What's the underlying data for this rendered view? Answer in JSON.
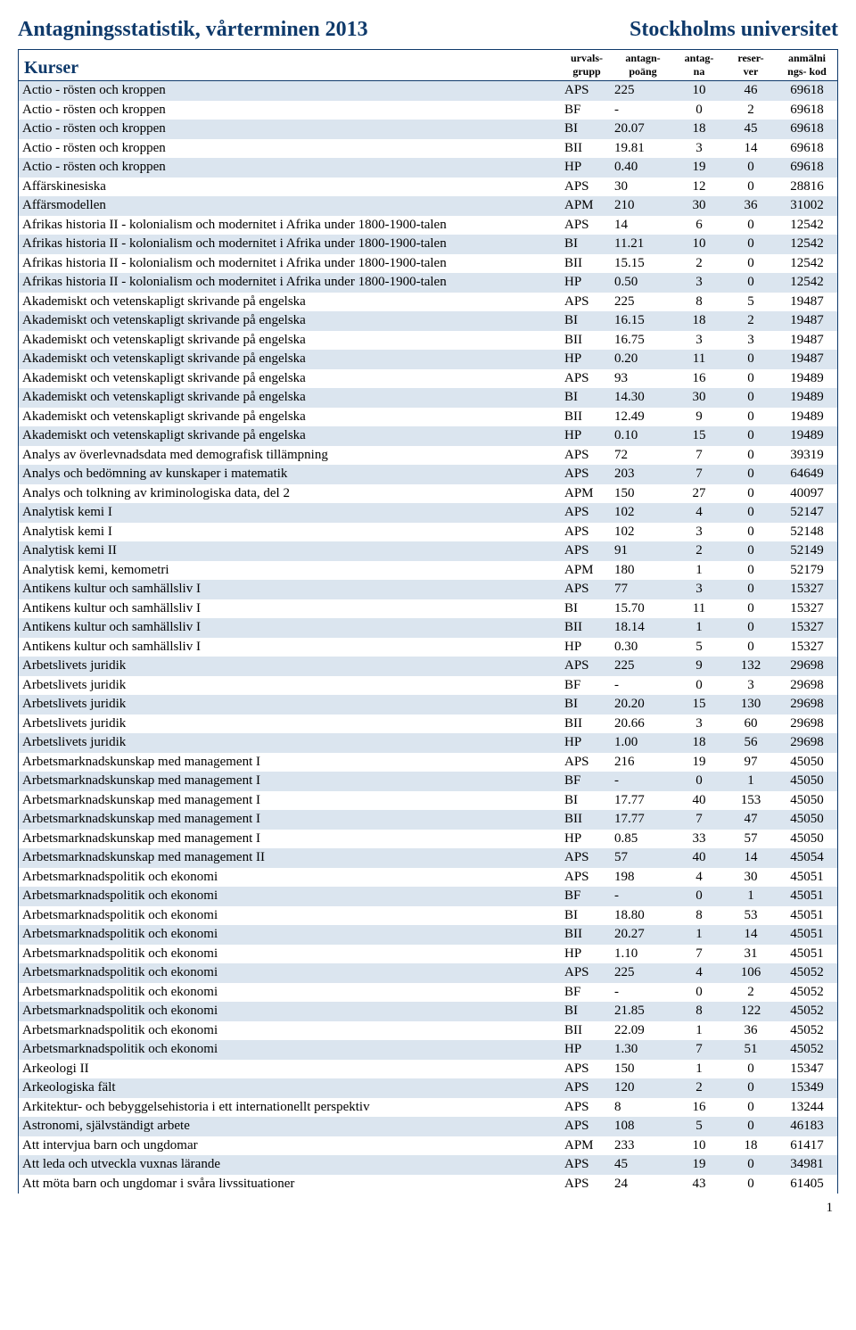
{
  "header": {
    "left": "Antagningsstatistik, vårterminen 2013",
    "right": "Stockholms universitet"
  },
  "columns": {
    "kurser": "Kurser",
    "grupp": "urvals-\ngrupp",
    "poang": "antagn-\npoäng",
    "antag": "antag-\nna",
    "reser": "reser-\nver",
    "kod": "anmälni\nngs- kod"
  },
  "page_number": "1",
  "rows": [
    {
      "name": "Actio - rösten och kroppen",
      "grupp": "APS",
      "poang": "225",
      "antag": "10",
      "reser": "46",
      "kod": "69618",
      "shade": true
    },
    {
      "name": "Actio - rösten och kroppen",
      "grupp": "BF",
      "poang": "-",
      "antag": "0",
      "reser": "2",
      "kod": "69618",
      "shade": false
    },
    {
      "name": "Actio - rösten och kroppen",
      "grupp": "BI",
      "poang": "20.07",
      "antag": "18",
      "reser": "45",
      "kod": "69618",
      "shade": true
    },
    {
      "name": "Actio - rösten och kroppen",
      "grupp": "BII",
      "poang": "19.81",
      "antag": "3",
      "reser": "14",
      "kod": "69618",
      "shade": false
    },
    {
      "name": "Actio - rösten och kroppen",
      "grupp": "HP",
      "poang": "0.40",
      "antag": "19",
      "reser": "0",
      "kod": "69618",
      "shade": true
    },
    {
      "name": "Affärskinesiska",
      "grupp": "APS",
      "poang": "30",
      "antag": "12",
      "reser": "0",
      "kod": "28816",
      "shade": false
    },
    {
      "name": "Affärsmodellen",
      "grupp": "APM",
      "poang": "210",
      "antag": "30",
      "reser": "36",
      "kod": "31002",
      "shade": true
    },
    {
      "name": "Afrikas historia II -  kolonialism och modernitet i Afrika under 1800-1900-talen",
      "grupp": "APS",
      "poang": "14",
      "antag": "6",
      "reser": "0",
      "kod": "12542",
      "shade": false
    },
    {
      "name": "Afrikas historia II -  kolonialism och modernitet i Afrika under 1800-1900-talen",
      "grupp": "BI",
      "poang": "11.21",
      "antag": "10",
      "reser": "0",
      "kod": "12542",
      "shade": true
    },
    {
      "name": "Afrikas historia II -  kolonialism och modernitet i Afrika under 1800-1900-talen",
      "grupp": "BII",
      "poang": "15.15",
      "antag": "2",
      "reser": "0",
      "kod": "12542",
      "shade": false
    },
    {
      "name": "Afrikas historia II -  kolonialism och modernitet i Afrika under 1800-1900-talen",
      "grupp": "HP",
      "poang": "0.50",
      "antag": "3",
      "reser": "0",
      "kod": "12542",
      "shade": true
    },
    {
      "name": "Akademiskt och vetenskapligt skrivande på engelska",
      "grupp": "APS",
      "poang": "225",
      "antag": "8",
      "reser": "5",
      "kod": "19487",
      "shade": false
    },
    {
      "name": "Akademiskt och vetenskapligt skrivande på engelska",
      "grupp": "BI",
      "poang": "16.15",
      "antag": "18",
      "reser": "2",
      "kod": "19487",
      "shade": true
    },
    {
      "name": "Akademiskt och vetenskapligt skrivande på engelska",
      "grupp": "BII",
      "poang": "16.75",
      "antag": "3",
      "reser": "3",
      "kod": "19487",
      "shade": false
    },
    {
      "name": "Akademiskt och vetenskapligt skrivande på engelska",
      "grupp": "HP",
      "poang": "0.20",
      "antag": "11",
      "reser": "0",
      "kod": "19487",
      "shade": true
    },
    {
      "name": "Akademiskt och vetenskapligt skrivande på engelska",
      "grupp": "APS",
      "poang": "93",
      "antag": "16",
      "reser": "0",
      "kod": "19489",
      "shade": false
    },
    {
      "name": "Akademiskt och vetenskapligt skrivande på engelska",
      "grupp": "BI",
      "poang": "14.30",
      "antag": "30",
      "reser": "0",
      "kod": "19489",
      "shade": true
    },
    {
      "name": "Akademiskt och vetenskapligt skrivande på engelska",
      "grupp": "BII",
      "poang": "12.49",
      "antag": "9",
      "reser": "0",
      "kod": "19489",
      "shade": false
    },
    {
      "name": "Akademiskt och vetenskapligt skrivande på engelska",
      "grupp": "HP",
      "poang": "0.10",
      "antag": "15",
      "reser": "0",
      "kod": "19489",
      "shade": true
    },
    {
      "name": "Analys av överlevnadsdata med demografisk tillämpning",
      "grupp": "APS",
      "poang": "72",
      "antag": "7",
      "reser": "0",
      "kod": "39319",
      "shade": false
    },
    {
      "name": "Analys och bedömning av kunskaper i matematik",
      "grupp": "APS",
      "poang": "203",
      "antag": "7",
      "reser": "0",
      "kod": "64649",
      "shade": true
    },
    {
      "name": "Analys och tolkning av kriminologiska data, del 2",
      "grupp": "APM",
      "poang": "150",
      "antag": "27",
      "reser": "0",
      "kod": "40097",
      "shade": false
    },
    {
      "name": "Analytisk kemi I",
      "grupp": "APS",
      "poang": "102",
      "antag": "4",
      "reser": "0",
      "kod": "52147",
      "shade": true
    },
    {
      "name": "Analytisk kemi I",
      "grupp": "APS",
      "poang": "102",
      "antag": "3",
      "reser": "0",
      "kod": "52148",
      "shade": false
    },
    {
      "name": "Analytisk kemi II",
      "grupp": "APS",
      "poang": "91",
      "antag": "2",
      "reser": "0",
      "kod": "52149",
      "shade": true
    },
    {
      "name": "Analytisk kemi, kemometri",
      "grupp": "APM",
      "poang": "180",
      "antag": "1",
      "reser": "0",
      "kod": "52179",
      "shade": false
    },
    {
      "name": "Antikens kultur och samhällsliv I",
      "grupp": "APS",
      "poang": "77",
      "antag": "3",
      "reser": "0",
      "kod": "15327",
      "shade": true
    },
    {
      "name": "Antikens kultur och samhällsliv I",
      "grupp": "BI",
      "poang": "15.70",
      "antag": "11",
      "reser": "0",
      "kod": "15327",
      "shade": false
    },
    {
      "name": "Antikens kultur och samhällsliv I",
      "grupp": "BII",
      "poang": "18.14",
      "antag": "1",
      "reser": "0",
      "kod": "15327",
      "shade": true
    },
    {
      "name": "Antikens kultur och samhällsliv I",
      "grupp": "HP",
      "poang": "0.30",
      "antag": "5",
      "reser": "0",
      "kod": "15327",
      "shade": false
    },
    {
      "name": "Arbetslivets juridik",
      "grupp": "APS",
      "poang": "225",
      "antag": "9",
      "reser": "132",
      "kod": "29698",
      "shade": true
    },
    {
      "name": "Arbetslivets juridik",
      "grupp": "BF",
      "poang": "-",
      "antag": "0",
      "reser": "3",
      "kod": "29698",
      "shade": false
    },
    {
      "name": "Arbetslivets juridik",
      "grupp": "BI",
      "poang": "20.20",
      "antag": "15",
      "reser": "130",
      "kod": "29698",
      "shade": true
    },
    {
      "name": "Arbetslivets juridik",
      "grupp": "BII",
      "poang": "20.66",
      "antag": "3",
      "reser": "60",
      "kod": "29698",
      "shade": false
    },
    {
      "name": "Arbetslivets juridik",
      "grupp": "HP",
      "poang": "1.00",
      "antag": "18",
      "reser": "56",
      "kod": "29698",
      "shade": true
    },
    {
      "name": "Arbetsmarknadskunskap med management I",
      "grupp": "APS",
      "poang": "216",
      "antag": "19",
      "reser": "97",
      "kod": "45050",
      "shade": false
    },
    {
      "name": "Arbetsmarknadskunskap med management I",
      "grupp": "BF",
      "poang": "-",
      "antag": "0",
      "reser": "1",
      "kod": "45050",
      "shade": true
    },
    {
      "name": "Arbetsmarknadskunskap med management I",
      "grupp": "BI",
      "poang": "17.77",
      "antag": "40",
      "reser": "153",
      "kod": "45050",
      "shade": false
    },
    {
      "name": "Arbetsmarknadskunskap med management I",
      "grupp": "BII",
      "poang": "17.77",
      "antag": "7",
      "reser": "47",
      "kod": "45050",
      "shade": true
    },
    {
      "name": "Arbetsmarknadskunskap med management I",
      "grupp": "HP",
      "poang": "0.85",
      "antag": "33",
      "reser": "57",
      "kod": "45050",
      "shade": false
    },
    {
      "name": "Arbetsmarknadskunskap med management II",
      "grupp": "APS",
      "poang": "57",
      "antag": "40",
      "reser": "14",
      "kod": "45054",
      "shade": true
    },
    {
      "name": "Arbetsmarknadspolitik och ekonomi",
      "grupp": "APS",
      "poang": "198",
      "antag": "4",
      "reser": "30",
      "kod": "45051",
      "shade": false
    },
    {
      "name": "Arbetsmarknadspolitik och ekonomi",
      "grupp": "BF",
      "poang": "-",
      "antag": "0",
      "reser": "1",
      "kod": "45051",
      "shade": true
    },
    {
      "name": "Arbetsmarknadspolitik och ekonomi",
      "grupp": "BI",
      "poang": "18.80",
      "antag": "8",
      "reser": "53",
      "kod": "45051",
      "shade": false
    },
    {
      "name": "Arbetsmarknadspolitik och ekonomi",
      "grupp": "BII",
      "poang": "20.27",
      "antag": "1",
      "reser": "14",
      "kod": "45051",
      "shade": true
    },
    {
      "name": "Arbetsmarknadspolitik och ekonomi",
      "grupp": "HP",
      "poang": "1.10",
      "antag": "7",
      "reser": "31",
      "kod": "45051",
      "shade": false
    },
    {
      "name": "Arbetsmarknadspolitik och ekonomi",
      "grupp": "APS",
      "poang": "225",
      "antag": "4",
      "reser": "106",
      "kod": "45052",
      "shade": true
    },
    {
      "name": "Arbetsmarknadspolitik och ekonomi",
      "grupp": "BF",
      "poang": "-",
      "antag": "0",
      "reser": "2",
      "kod": "45052",
      "shade": false
    },
    {
      "name": "Arbetsmarknadspolitik och ekonomi",
      "grupp": "BI",
      "poang": "21.85",
      "antag": "8",
      "reser": "122",
      "kod": "45052",
      "shade": true
    },
    {
      "name": "Arbetsmarknadspolitik och ekonomi",
      "grupp": "BII",
      "poang": "22.09",
      "antag": "1",
      "reser": "36",
      "kod": "45052",
      "shade": false
    },
    {
      "name": "Arbetsmarknadspolitik och ekonomi",
      "grupp": "HP",
      "poang": "1.30",
      "antag": "7",
      "reser": "51",
      "kod": "45052",
      "shade": true
    },
    {
      "name": "Arkeologi II",
      "grupp": "APS",
      "poang": "150",
      "antag": "1",
      "reser": "0",
      "kod": "15347",
      "shade": false
    },
    {
      "name": "Arkeologiska fält",
      "grupp": "APS",
      "poang": "120",
      "antag": "2",
      "reser": "0",
      "kod": "15349",
      "shade": true
    },
    {
      "name": "Arkitektur- och bebyggelsehistoria i ett internationellt perspektiv",
      "grupp": "APS",
      "poang": "8",
      "antag": "16",
      "reser": "0",
      "kod": "13244",
      "shade": false
    },
    {
      "name": "Astronomi, självständigt arbete",
      "grupp": "APS",
      "poang": "108",
      "antag": "5",
      "reser": "0",
      "kod": "46183",
      "shade": true
    },
    {
      "name": "Att intervjua barn och ungdomar",
      "grupp": "APM",
      "poang": "233",
      "antag": "10",
      "reser": "18",
      "kod": "61417",
      "shade": false
    },
    {
      "name": "Att leda och utveckla vuxnas lärande",
      "grupp": "APS",
      "poang": "45",
      "antag": "19",
      "reser": "0",
      "kod": "34981",
      "shade": true
    },
    {
      "name": "Att möta barn och ungdomar i svåra livssituationer",
      "grupp": "APS",
      "poang": "24",
      "antag": "43",
      "reser": "0",
      "kod": "61405",
      "shade": false
    }
  ]
}
